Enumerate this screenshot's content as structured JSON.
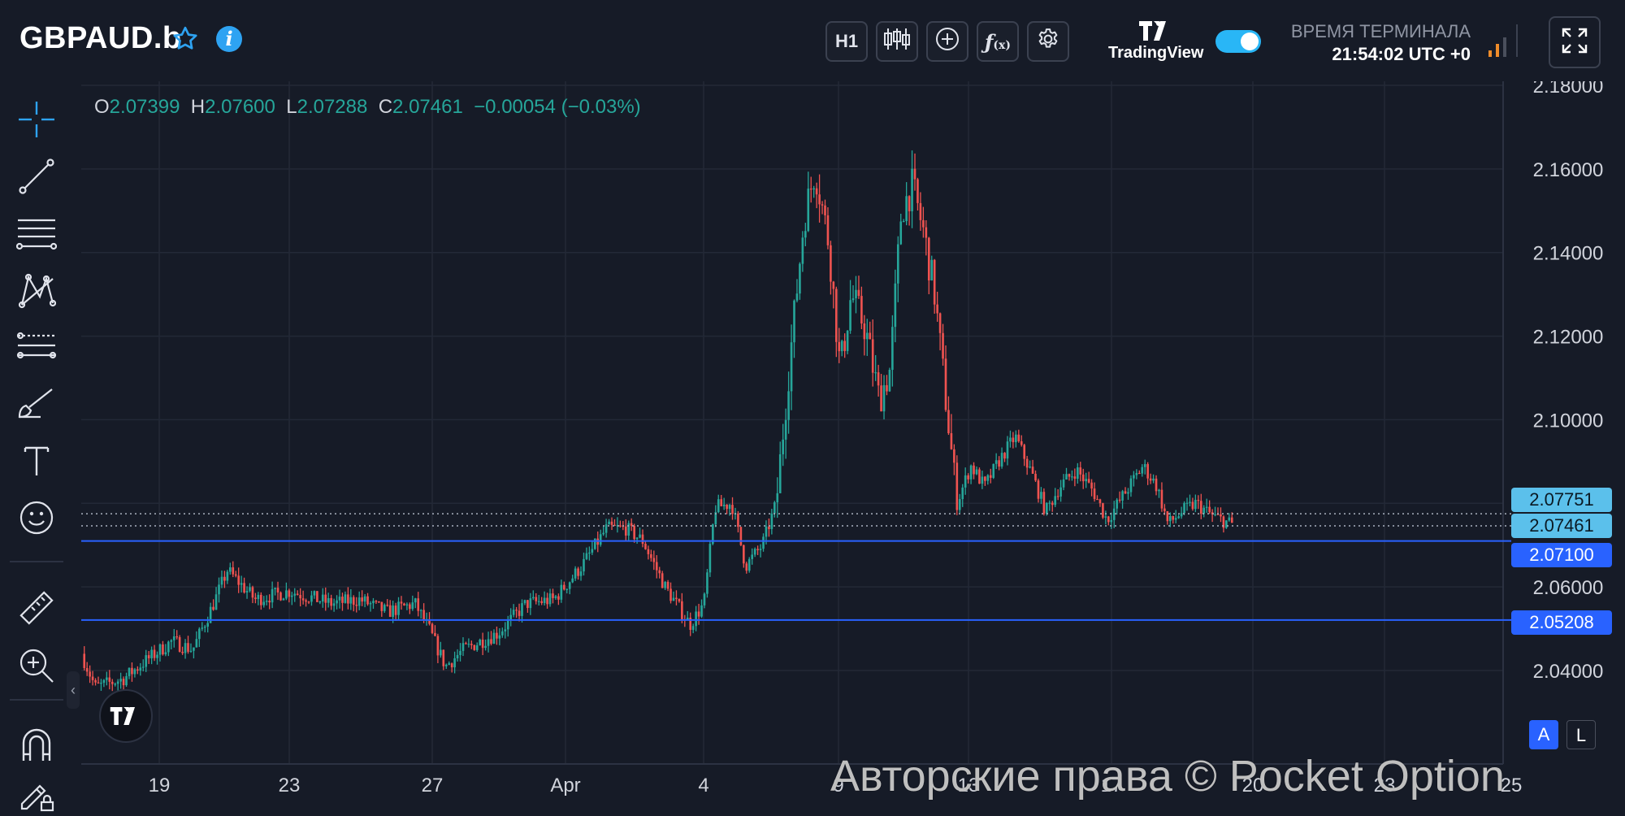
{
  "header": {
    "symbol": "GBPAUD.b",
    "timeframe": "H1",
    "brand": "TradingView",
    "terminal_label": "ВРЕМЯ ТЕРМИНАЛА",
    "terminal_time": "21:54:02 UTC +0"
  },
  "ohlc": {
    "o_label": "O",
    "o": "2.07399",
    "h_label": "H",
    "h": "2.07600",
    "l_label": "L",
    "l": "2.07288",
    "c_label": "C",
    "c": "2.07461",
    "change": "−0.00054 (−0.03%)"
  },
  "scale_buttons": {
    "auto": "A",
    "log": "L"
  },
  "watermark": "Авторские права © Pocket Option",
  "colors": {
    "background": "#161b27",
    "up": "#26a69a",
    "down": "#ef5350",
    "level_line": "#2962ff",
    "price_label": "#5bc0eb",
    "level_label": "#2962ff"
  },
  "toolbar_icons": [
    "crosshair-icon",
    "trend-line-icon",
    "fib-lines-icon",
    "pattern-icon",
    "prediction-icon",
    "brush-icon",
    "text-icon",
    "emoji-icon",
    "ruler-icon",
    "zoom-in-icon",
    "magnet-icon",
    "lock-pencil-icon"
  ],
  "chart_data": {
    "type": "candlestick",
    "ylim": [
      2.03,
      2.18
    ],
    "y_ticks": [
      "2.18000",
      "2.16000",
      "2.14000",
      "2.12000",
      "2.10000",
      "2.08000",
      "2.06000",
      "2.04000"
    ],
    "x_ticks": [
      "19",
      "23",
      "27",
      "Apr",
      "4",
      "9",
      "13",
      "17",
      "20",
      "23",
      "25"
    ],
    "close_path": [
      [
        0.0,
        2.044
      ],
      [
        0.01,
        2.036
      ],
      [
        0.03,
        2.038
      ],
      [
        0.045,
        2.042
      ],
      [
        0.065,
        2.047
      ],
      [
        0.08,
        2.045
      ],
      [
        0.095,
        2.056
      ],
      [
        0.105,
        2.064
      ],
      [
        0.125,
        2.057
      ],
      [
        0.15,
        2.059
      ],
      [
        0.18,
        2.056
      ],
      [
        0.2,
        2.057
      ],
      [
        0.22,
        2.054
      ],
      [
        0.24,
        2.056
      ],
      [
        0.25,
        2.05
      ],
      [
        0.262,
        2.041
      ],
      [
        0.275,
        2.045
      ],
      [
        0.3,
        2.049
      ],
      [
        0.32,
        2.056
      ],
      [
        0.34,
        2.057
      ],
      [
        0.36,
        2.065
      ],
      [
        0.378,
        2.074
      ],
      [
        0.392,
        2.074
      ],
      [
        0.404,
        2.071
      ],
      [
        0.42,
        2.06
      ],
      [
        0.438,
        2.051
      ],
      [
        0.448,
        2.056
      ],
      [
        0.456,
        2.079
      ],
      [
        0.468,
        2.08
      ],
      [
        0.478,
        2.065
      ],
      [
        0.49,
        2.07
      ],
      [
        0.5,
        2.08
      ],
      [
        0.51,
        2.115
      ],
      [
        0.52,
        2.148
      ],
      [
        0.528,
        2.16
      ],
      [
        0.538,
        2.142
      ],
      [
        0.546,
        2.112
      ],
      [
        0.554,
        2.13
      ],
      [
        0.564,
        2.122
      ],
      [
        0.574,
        2.105
      ],
      [
        0.582,
        2.112
      ],
      [
        0.59,
        2.15
      ],
      [
        0.598,
        2.156
      ],
      [
        0.606,
        2.145
      ],
      [
        0.614,
        2.13
      ],
      [
        0.622,
        2.105
      ],
      [
        0.63,
        2.08
      ],
      [
        0.64,
        2.089
      ],
      [
        0.65,
        2.084
      ],
      [
        0.66,
        2.09
      ],
      [
        0.672,
        2.096
      ],
      [
        0.684,
        2.087
      ],
      [
        0.694,
        2.078
      ],
      [
        0.704,
        2.084
      ],
      [
        0.716,
        2.088
      ],
      [
        0.728,
        2.083
      ],
      [
        0.738,
        2.076
      ],
      [
        0.75,
        2.082
      ],
      [
        0.764,
        2.089
      ],
      [
        0.774,
        2.084
      ],
      [
        0.782,
        2.075
      ],
      [
        0.792,
        2.078
      ],
      [
        0.802,
        2.08
      ],
      [
        0.814,
        2.077
      ],
      [
        0.828,
        2.075
      ]
    ],
    "current_price": "2.07461",
    "ask_price": "2.07751",
    "levels": [
      {
        "value": 2.071,
        "label": "2.07100"
      },
      {
        "value": 2.05208,
        "label": "2.05208"
      }
    ]
  }
}
